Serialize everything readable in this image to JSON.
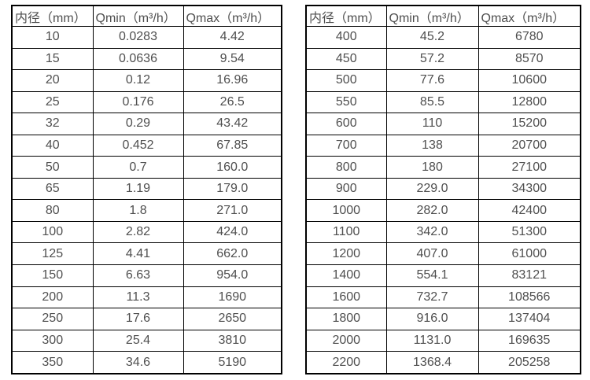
{
  "page": {
    "background": "#ffffff",
    "border_color": "#000000",
    "text_color": "#4f4f4f"
  },
  "tables": [
    {
      "headers": [
        "内径（mm）",
        "Qmin（m³/h）",
        "Qmax（m³/h）"
      ],
      "rows": [
        [
          "10",
          "0.0283",
          "4.42"
        ],
        [
          "15",
          "0.0636",
          "9.54"
        ],
        [
          "20",
          "0.12",
          "16.96"
        ],
        [
          "25",
          "0.176",
          "26.5"
        ],
        [
          "32",
          "0.29",
          "43.42"
        ],
        [
          "40",
          "0.452",
          "67.85"
        ],
        [
          "50",
          "0.7",
          "160.0"
        ],
        [
          "65",
          "1.19",
          "179.0"
        ],
        [
          "80",
          "1.8",
          "271.0"
        ],
        [
          "100",
          "2.82",
          "424.0"
        ],
        [
          "125",
          "4.41",
          "662.0"
        ],
        [
          "150",
          "6.63",
          "954.0"
        ],
        [
          "200",
          "11.3",
          "1690"
        ],
        [
          "250",
          "17.6",
          "2650"
        ],
        [
          "300",
          "25.4",
          "3810"
        ],
        [
          "350",
          "34.6",
          "5190"
        ]
      ]
    },
    {
      "headers": [
        "内径（mm）",
        "Qmin（m³/h）",
        "Qmax（m³/h）"
      ],
      "rows": [
        [
          "400",
          "45.2",
          "6780"
        ],
        [
          "450",
          "57.2",
          "8570"
        ],
        [
          "500",
          "77.6",
          "10600"
        ],
        [
          "550",
          "85.5",
          "12800"
        ],
        [
          "600",
          "110",
          "15200"
        ],
        [
          "700",
          "138",
          "20700"
        ],
        [
          "800",
          "180",
          "27100"
        ],
        [
          "900",
          "229.0",
          "34300"
        ],
        [
          "1000",
          "282.0",
          "42400"
        ],
        [
          "1100",
          "342.0",
          "51300"
        ],
        [
          "1200",
          "407.0",
          "61000"
        ],
        [
          "1400",
          "554.1",
          "83121"
        ],
        [
          "1600",
          "732.7",
          "108566"
        ],
        [
          "1800",
          "916.0",
          "137404"
        ],
        [
          "2000",
          "1131.0",
          "169635"
        ],
        [
          "2200",
          "1368.4",
          "205258"
        ]
      ]
    }
  ]
}
